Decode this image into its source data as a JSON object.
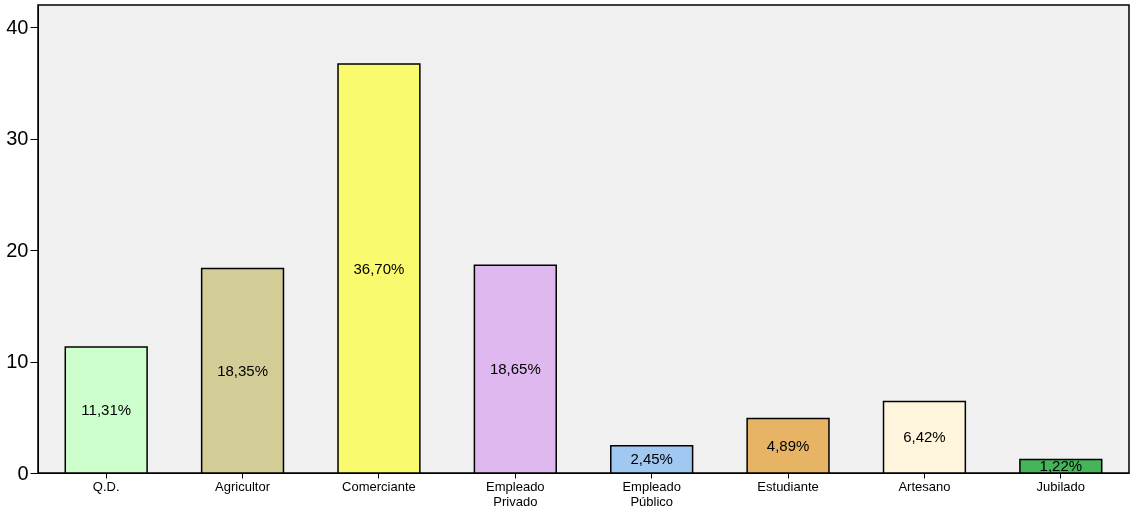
{
  "chart_data": {
    "type": "bar",
    "categories": [
      "Q.D.",
      "Agricultor",
      "Comerciante",
      "Empleado Privado",
      "Empleado Público",
      "Estudiante",
      "Artesano",
      "Jubilado"
    ],
    "values": [
      11.31,
      18.35,
      36.7,
      18.65,
      2.45,
      4.89,
      6.42,
      1.22
    ],
    "colors": [
      "#ccffcc",
      "#d2cc96",
      "#fafa6e",
      "#e0b8f0",
      "#a0c8f0",
      "#e6b464",
      "#fff5dc",
      "#46b45a"
    ],
    "value_labels": [
      "11,31%",
      "18,35%",
      "36,70%",
      "18,65%",
      "2,45%",
      "4,89%",
      "6,42%",
      "1,22%"
    ],
    "ylim": [
      0,
      42
    ],
    "yticks": [
      0,
      10,
      20,
      30,
      40
    ],
    "grid": false,
    "legend": false
  }
}
